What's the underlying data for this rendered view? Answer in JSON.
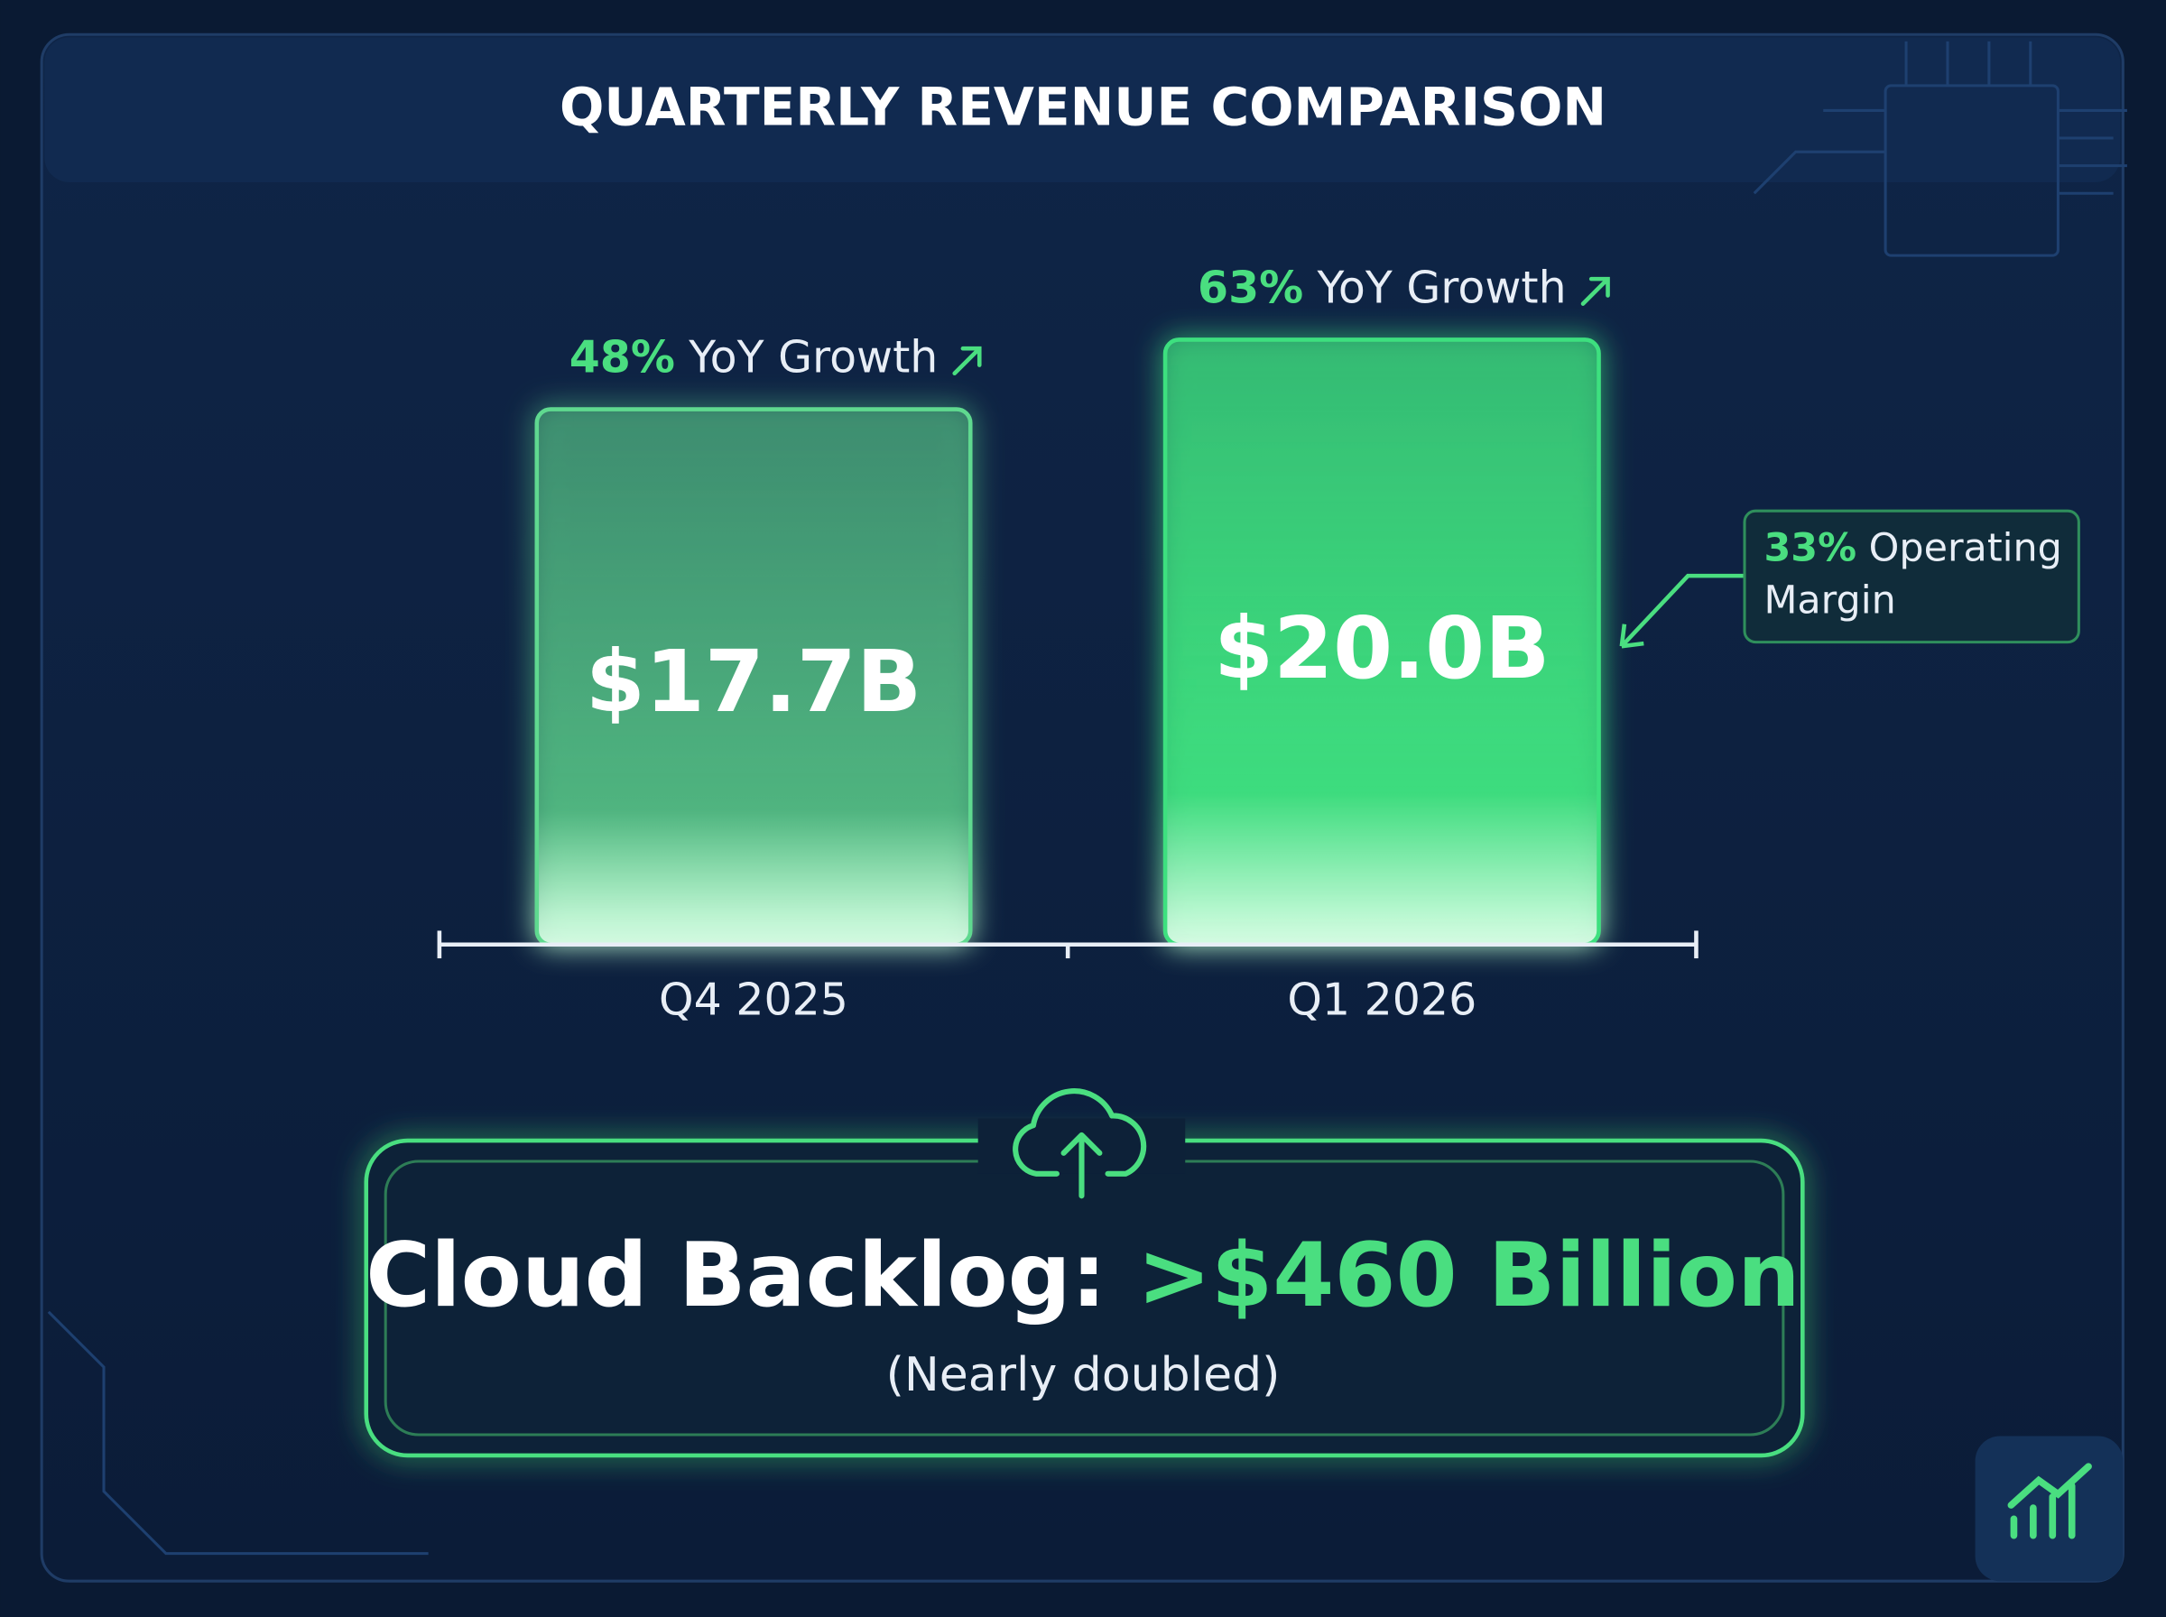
{
  "chart_data": {
    "type": "bar",
    "title": "QUARTERLY REVENUE COMPARISON",
    "categories": [
      "Q4 2025",
      "Q1 2026"
    ],
    "values": [
      17.7,
      20.0
    ],
    "value_labels": [
      "$17.7B",
      "$20.0B"
    ],
    "colors": [
      "#5fd98f",
      "#3ee07f"
    ],
    "growth": [
      {
        "label": "48%",
        "text": "YoY Growth"
      },
      {
        "label": "63%",
        "text": "YoY Growth"
      }
    ],
    "margin_callout": {
      "label": "33%",
      "text": "Operating Margin"
    },
    "backlog": {
      "label": "Cloud Backlog:",
      "value_label": ">$460 Billion",
      "note": "(Nearly doubled)"
    }
  }
}
